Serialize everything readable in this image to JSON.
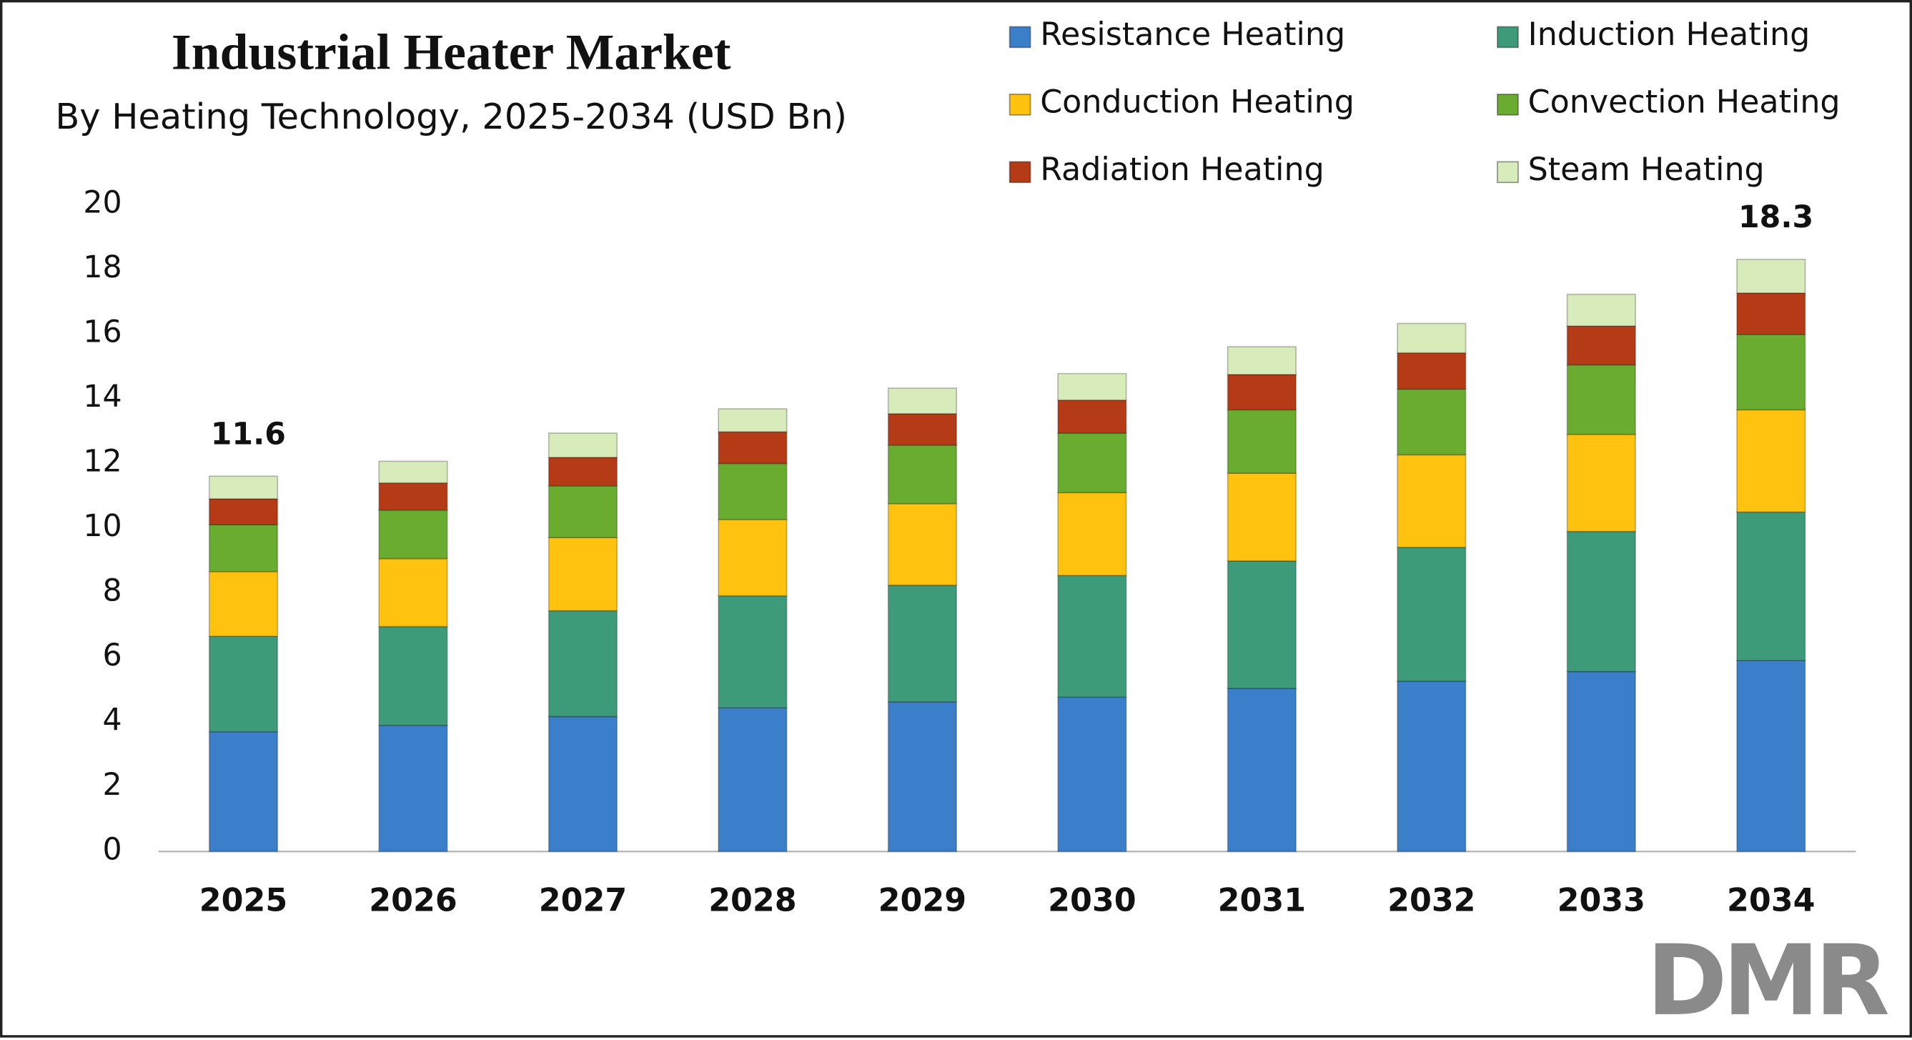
{
  "chart_data": {
    "type": "stacked_bar",
    "title": "Industrial Heater Market",
    "subtitle": "By Heating Technology, 2025-2034 (USD Bn)",
    "watermark": "DMR",
    "categories": [
      "2025",
      "2026",
      "2027",
      "2028",
      "2029",
      "2030",
      "2031",
      "2032",
      "2033",
      "2034"
    ],
    "series": [
      {
        "name": "Resistance Heating",
        "color": "#3b7fcb",
        "values": [
          3.7,
          3.9,
          4.17,
          4.44,
          4.62,
          4.77,
          5.04,
          5.26,
          5.56,
          5.9
        ]
      },
      {
        "name": "Induction Heating",
        "color": "#3e9b79",
        "values": [
          2.95,
          3.05,
          3.27,
          3.46,
          3.61,
          3.76,
          3.94,
          4.14,
          4.33,
          4.59
        ]
      },
      {
        "name": "Conduction Heating",
        "color": "#ffc20e",
        "values": [
          2.0,
          2.1,
          2.26,
          2.36,
          2.52,
          2.56,
          2.71,
          2.86,
          3.0,
          3.16
        ]
      },
      {
        "name": "Convection Heating",
        "color": "#6aac2f",
        "values": [
          1.45,
          1.5,
          1.6,
          1.73,
          1.81,
          1.84,
          1.96,
          2.03,
          2.15,
          2.33
        ]
      },
      {
        "name": "Radiation Heating",
        "color": "#b43b16",
        "values": [
          0.8,
          0.84,
          0.88,
          0.98,
          0.97,
          1.02,
          1.09,
          1.12,
          1.2,
          1.28
        ]
      },
      {
        "name": "Steam Heating",
        "color": "#d7ebbb",
        "values": [
          0.7,
          0.67,
          0.75,
          0.71,
          0.79,
          0.82,
          0.86,
          0.91,
          0.98,
          1.04
        ]
      }
    ],
    "totals": [
      11.6,
      null,
      null,
      null,
      null,
      null,
      null,
      null,
      null,
      18.3
    ],
    "ylim": [
      0,
      20
    ],
    "yticks": [
      0,
      2,
      4,
      6,
      8,
      10,
      12,
      14,
      16,
      18,
      20
    ],
    "grid": false
  }
}
